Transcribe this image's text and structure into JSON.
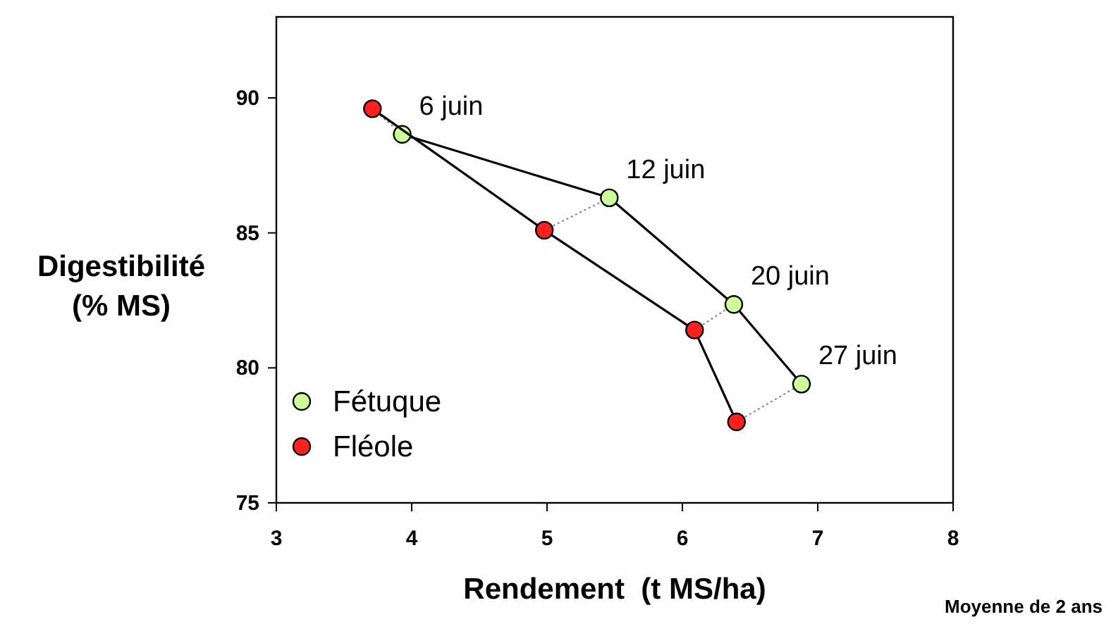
{
  "chart_data": {
    "type": "line",
    "xlabel": "Rendement  (t MS/ha)",
    "ylabel": "Digestibilité\n(% MS)",
    "xlim": [
      3,
      8
    ],
    "xticks": [
      3,
      4,
      5,
      6,
      7,
      8
    ],
    "ylim": [
      75,
      93
    ],
    "yticks": [
      75,
      80,
      85,
      90
    ],
    "grid": false,
    "legend": "bottom left",
    "marker": "circle",
    "series": [
      {
        "name": "Fétuque",
        "color": "#ccff99",
        "x": [
          3.93,
          5.46,
          6.38,
          6.88
        ],
        "values": [
          88.65,
          86.3,
          82.35,
          79.4
        ]
      },
      {
        "name": "Fléole",
        "color": "#ff2020",
        "x": [
          3.71,
          4.98,
          6.09,
          6.4
        ],
        "values": [
          89.6,
          85.1,
          81.4,
          78.0
        ]
      },
      {
        "type": "line",
        "color": "#808080",
        "line_style": "dotted",
        "marker": "none",
        "x": [
          3.71,
          3.93
        ],
        "values": [
          89.6,
          88.65
        ]
      },
      {
        "type": "line",
        "color": "#808080",
        "line_style": "dotted",
        "marker": "none",
        "x": [
          4.98,
          5.46
        ],
        "values": [
          85.1,
          86.3
        ]
      },
      {
        "type": "line",
        "color": "#808080",
        "line_style": "dotted",
        "marker": "none",
        "x": [
          6.09,
          6.38
        ],
        "values": [
          81.4,
          82.35
        ]
      },
      {
        "type": "line",
        "color": "#808080",
        "line_style": "dotted",
        "marker": "none",
        "x": [
          6.4,
          6.88
        ],
        "values": [
          78.0,
          79.4
        ]
      }
    ],
    "annotations": [
      {
        "text": "6 juin",
        "x": 3.93,
        "y": 88.65
      },
      {
        "text": "12 juin",
        "x": 5.46,
        "y": 86.3
      },
      {
        "text": "20 juin",
        "x": 6.38,
        "y": 82.35
      },
      {
        "text": "27 juin",
        "x": 6.88,
        "y": 79.4
      },
      "Moyenne de 2 ans"
    ]
  }
}
